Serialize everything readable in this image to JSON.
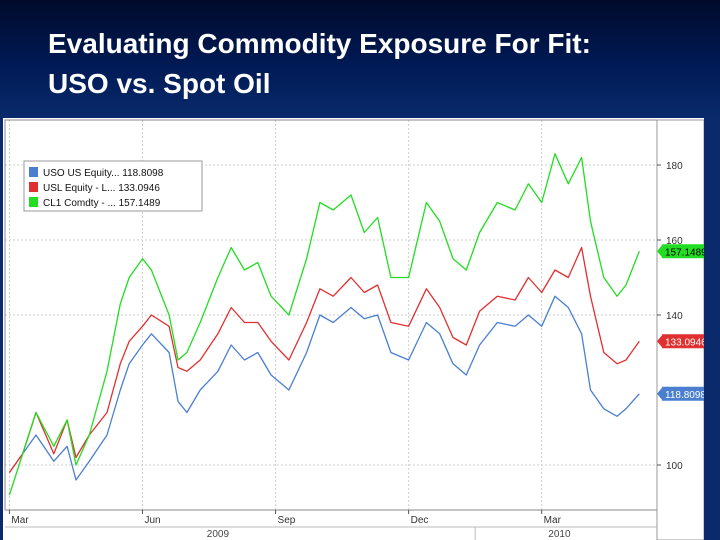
{
  "slide": {
    "title_line1": "Evaluating Commodity Exposure For Fit:",
    "title_line2": "USO vs. Spot Oil"
  },
  "chart_data": {
    "type": "line",
    "y_ticks": [
      100,
      140,
      160,
      180
    ],
    "ylim": [
      88,
      192
    ],
    "x_month_labels": [
      "Mar",
      "Jun",
      "Sep",
      "Dec",
      "Mar"
    ],
    "x_month_positions": [
      0,
      3,
      6,
      9,
      12
    ],
    "x_year_labels": [
      "2009",
      "2010"
    ],
    "x_year_positions": [
      4.7,
      12.4
    ],
    "xlim": [
      -0.1,
      14.6
    ],
    "grid": true,
    "legend_position": "top-left",
    "series": [
      {
        "name": "USO US Equity... 118.8098",
        "color": "#4a7fd0",
        "last_value": "118.8098",
        "x": [
          0,
          0.3,
          0.6,
          1.0,
          1.3,
          1.5,
          1.8,
          2.2,
          2.5,
          2.7,
          3.0,
          3.2,
          3.6,
          3.8,
          4.0,
          4.3,
          4.7,
          5.0,
          5.3,
          5.6,
          5.9,
          6.3,
          6.7,
          7.0,
          7.3,
          7.7,
          8.0,
          8.3,
          8.6,
          9.0,
          9.4,
          9.7,
          10.0,
          10.3,
          10.6,
          11.0,
          11.4,
          11.7,
          12.0,
          12.3,
          12.6,
          12.9,
          13.1,
          13.4,
          13.7,
          13.9,
          14.2
        ],
        "values": [
          98,
          103,
          108,
          101,
          105,
          96,
          101,
          108,
          120,
          127,
          132,
          135,
          130,
          117,
          114,
          120,
          125,
          132,
          128,
          130,
          124,
          120,
          130,
          140,
          138,
          142,
          139,
          140,
          130,
          128,
          138,
          135,
          127,
          124,
          132,
          138,
          137,
          140,
          137,
          145,
          142,
          135,
          120,
          115,
          113,
          115,
          119
        ]
      },
      {
        "name": "USL Equity - L... 133.0946",
        "color": "#e03030",
        "last_value": "133.0946",
        "x": [
          0,
          0.3,
          0.6,
          1.0,
          1.3,
          1.5,
          1.8,
          2.2,
          2.5,
          2.7,
          3.0,
          3.2,
          3.6,
          3.8,
          4.0,
          4.3,
          4.7,
          5.0,
          5.3,
          5.6,
          5.9,
          6.3,
          6.7,
          7.0,
          7.3,
          7.7,
          8.0,
          8.3,
          8.6,
          9.0,
          9.4,
          9.7,
          10.0,
          10.3,
          10.6,
          11.0,
          11.4,
          11.7,
          12.0,
          12.3,
          12.6,
          12.9,
          13.1,
          13.4,
          13.7,
          13.9,
          14.2
        ],
        "values": [
          98,
          103,
          114,
          103,
          112,
          102,
          108,
          114,
          127,
          133,
          137,
          140,
          137,
          126,
          125,
          128,
          135,
          142,
          138,
          138,
          133,
          128,
          138,
          147,
          145,
          150,
          146,
          148,
          138,
          137,
          147,
          142,
          134,
          132,
          141,
          145,
          144,
          150,
          146,
          152,
          150,
          158,
          145,
          130,
          127,
          128,
          133
        ]
      },
      {
        "name": "CL1 Comdty - ... 157.1489",
        "color": "#22dd22",
        "last_value": "157.1489",
        "x": [
          0,
          0.3,
          0.6,
          1.0,
          1.3,
          1.5,
          1.8,
          2.2,
          2.5,
          2.7,
          3.0,
          3.2,
          3.6,
          3.8,
          4.0,
          4.3,
          4.7,
          5.0,
          5.3,
          5.6,
          5.9,
          6.3,
          6.7,
          7.0,
          7.3,
          7.7,
          8.0,
          8.3,
          8.6,
          9.0,
          9.4,
          9.7,
          10.0,
          10.3,
          10.6,
          11.0,
          11.4,
          11.7,
          12.0,
          12.3,
          12.6,
          12.9,
          13.1,
          13.4,
          13.7,
          13.9,
          14.2
        ],
        "values": [
          92,
          103,
          114,
          105,
          112,
          100,
          108,
          125,
          143,
          150,
          155,
          152,
          140,
          128,
          130,
          138,
          150,
          158,
          152,
          154,
          145,
          140,
          155,
          170,
          168,
          172,
          162,
          166,
          150,
          150,
          170,
          165,
          155,
          152,
          162,
          170,
          168,
          175,
          170,
          183,
          175,
          182,
          165,
          150,
          145,
          148,
          157
        ]
      }
    ]
  }
}
